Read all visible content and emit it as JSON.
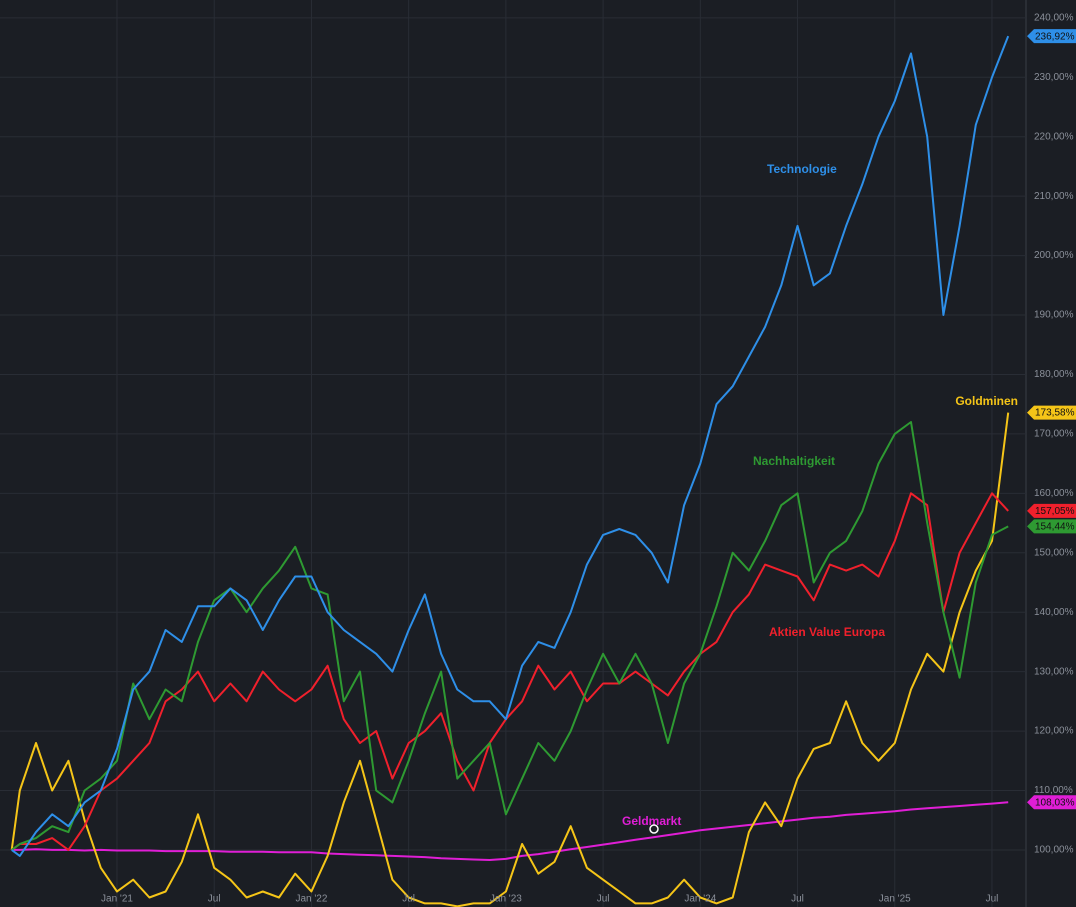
{
  "chart_data": {
    "type": "line",
    "x": [
      -6.5,
      -6,
      -5,
      -4,
      -3,
      -2,
      -1,
      0,
      1,
      2,
      3,
      4,
      5,
      6,
      7,
      8,
      9,
      10,
      11,
      12,
      13,
      14,
      15,
      16,
      17,
      18,
      19,
      20,
      21,
      22,
      23,
      24,
      25,
      26,
      27,
      28,
      29,
      30,
      31,
      32,
      33,
      34,
      35,
      36,
      37,
      38,
      39,
      40,
      41,
      42,
      43,
      44,
      45,
      46,
      47,
      48,
      49,
      50,
      51,
      52,
      53,
      54,
      55
    ],
    "xlim": [
      -7.22,
      56.1
    ],
    "xticks": [
      {
        "value": 0,
        "label": "Jan '21"
      },
      {
        "value": 6,
        "label": "Jul"
      },
      {
        "value": 12,
        "label": "Jan '22"
      },
      {
        "value": 18,
        "label": "Jul"
      },
      {
        "value": 24,
        "label": "Jan '23"
      },
      {
        "value": 30,
        "label": "Jul"
      },
      {
        "value": 36,
        "label": "Jan '24"
      },
      {
        "value": 42,
        "label": "Jul"
      },
      {
        "value": 48,
        "label": "Jan '25"
      },
      {
        "value": 54,
        "label": "Jul"
      }
    ],
    "ylim": [
      90.4,
      243
    ],
    "yticks": [
      {
        "value": 100,
        "label": "100,00%"
      },
      {
        "value": 110,
        "label": "110,00%"
      },
      {
        "value": 120,
        "label": "120,00%"
      },
      {
        "value": 130,
        "label": "130,00%"
      },
      {
        "value": 140,
        "label": "140,00%"
      },
      {
        "value": 150,
        "label": "150,00%"
      },
      {
        "value": 160,
        "label": "160,00%"
      },
      {
        "value": 170,
        "label": "170,00%"
      },
      {
        "value": 180,
        "label": "180,00%"
      },
      {
        "value": 190,
        "label": "190,00%"
      },
      {
        "value": 200,
        "label": "200,00%"
      },
      {
        "value": 210,
        "label": "210,00%"
      },
      {
        "value": 220,
        "label": "220,00%"
      },
      {
        "value": 230,
        "label": "230,00%"
      },
      {
        "value": 240,
        "label": "240,00%"
      }
    ],
    "grid": true,
    "series": [
      {
        "name": "Technologie",
        "color": "#2e8fe8",
        "last_value_label": "236,92%",
        "values": [
          100,
          99,
          103,
          106,
          104,
          108,
          110,
          117,
          127,
          130,
          137,
          135,
          141,
          141,
          144,
          142,
          137,
          142,
          146,
          146,
          140,
          137,
          135,
          133,
          130,
          137,
          143,
          133,
          127,
          125,
          125,
          122,
          131,
          135,
          134,
          140,
          148,
          153,
          154,
          153,
          150,
          145,
          158,
          165,
          175,
          178,
          183,
          188,
          195,
          205,
          195,
          197,
          205,
          212,
          220,
          226,
          234,
          220,
          190,
          205,
          222,
          230,
          236.92
        ]
      },
      {
        "name": "Nachhaltigkeit",
        "color": "#2e9a32",
        "last_value_label": "154,44%",
        "values": [
          100,
          101,
          102,
          104,
          103,
          110,
          112,
          115,
          128,
          122,
          127,
          125,
          135,
          142,
          144,
          140,
          144,
          147,
          151,
          144,
          143,
          125,
          130,
          110,
          108,
          115,
          123,
          130,
          112,
          115,
          118,
          106,
          112,
          118,
          115,
          120,
          127,
          133,
          128,
          133,
          128,
          118,
          128,
          133,
          141,
          150,
          147,
          152,
          158,
          160,
          145,
          150,
          152,
          157,
          165,
          170,
          172,
          155,
          140,
          129,
          145,
          153,
          154.44
        ]
      },
      {
        "name": "Aktien Value Europa",
        "color": "#f0202c",
        "last_value_label": "157,05%",
        "values": [
          100,
          101,
          101,
          102,
          100,
          104,
          110,
          112,
          115,
          118,
          125,
          127,
          130,
          125,
          128,
          125,
          130,
          127,
          125,
          127,
          131,
          122,
          118,
          120,
          112,
          118,
          120,
          123,
          115,
          110,
          118,
          122,
          125,
          131,
          127,
          130,
          125,
          128,
          128,
          130,
          128,
          126,
          130,
          133,
          135,
          140,
          143,
          148,
          147,
          146,
          142,
          148,
          147,
          148,
          146,
          152,
          160,
          158,
          140,
          150,
          155,
          160,
          157.05
        ]
      },
      {
        "name": "Goldminen",
        "color": "#f5c518",
        "last_value_label": "173,58%",
        "values": [
          100,
          110,
          118,
          110,
          115,
          105,
          97,
          93,
          95,
          92,
          93,
          98,
          106,
          97,
          95,
          92,
          93,
          92,
          96,
          93,
          99,
          108,
          115,
          105,
          95,
          92,
          91,
          91,
          90.5,
          91,
          91,
          93,
          101,
          96,
          98,
          104,
          97,
          95,
          93,
          91,
          91,
          92,
          95,
          92,
          91,
          92,
          103,
          108,
          104,
          112,
          117,
          118,
          125,
          118,
          115,
          118,
          127,
          133,
          130,
          140,
          147,
          152,
          173.58
        ]
      },
      {
        "name": "Geldmarkt",
        "color": "#e01ed6",
        "last_value_label": "108,03%",
        "values": [
          100,
          100,
          100.1,
          100,
          100,
          99.9,
          100,
          99.9,
          99.9,
          99.9,
          99.8,
          99.8,
          99.8,
          99.8,
          99.7,
          99.7,
          99.7,
          99.6,
          99.6,
          99.6,
          99.4,
          99.3,
          99.2,
          99.1,
          99,
          98.9,
          98.8,
          98.6,
          98.5,
          98.4,
          98.3,
          98.5,
          99,
          99.3,
          99.7,
          100.1,
          100.5,
          100.9,
          101.3,
          101.7,
          102.1,
          102.5,
          102.9,
          103.3,
          103.6,
          103.9,
          104.2,
          104.5,
          104.8,
          105.1,
          105.4,
          105.6,
          105.9,
          106.1,
          106.3,
          106.5,
          106.8,
          107,
          107.2,
          107.4,
          107.6,
          107.8,
          108.03
        ]
      }
    ]
  }
}
